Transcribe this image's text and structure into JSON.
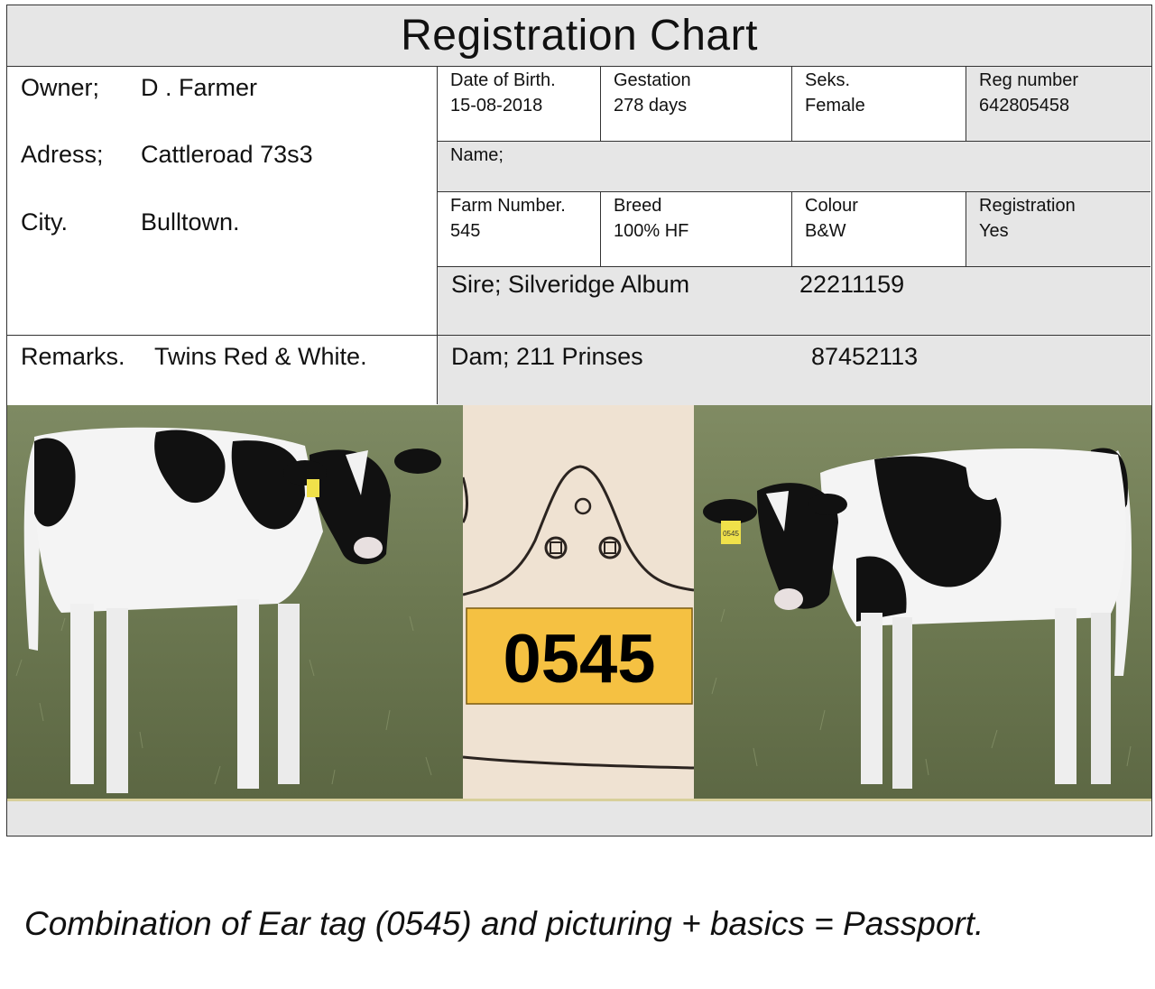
{
  "title": "Registration Chart",
  "owner": {
    "owner_label": "Owner;",
    "owner_value": "D . Farmer",
    "address_label": "Adress;",
    "address_value": "Cattleroad 73s3",
    "city_label": "City.",
    "city_value": "Bulltown."
  },
  "remarks": {
    "label": "Remarks.",
    "value": "Twins Red & White."
  },
  "row1": [
    {
      "label": "Date of Birth.",
      "value": "15-08-2018"
    },
    {
      "label": "Gestation",
      "value": "278 days"
    },
    {
      "label": "Seks.",
      "value": "Female"
    },
    {
      "label": "Reg number",
      "value": "642805458"
    }
  ],
  "name_label": "Name;",
  "row2": [
    {
      "label": "Farm Number.",
      "value": "545"
    },
    {
      "label": "Breed",
      "value": "100% HF"
    },
    {
      "label": "Colour",
      "value": "B&W"
    },
    {
      "label": "Registration",
      "value": "Yes"
    }
  ],
  "sire": {
    "label": "Sire;  Silveridge Album",
    "number": "22211159"
  },
  "dam": {
    "label": "Dam; 211 Prinses",
    "number": "87452113"
  },
  "ear_tag": {
    "number": "0545",
    "small_number": "0545"
  },
  "caption": "Combination of Ear tag (0545) and picturing + basics = Passport.",
  "colors": {
    "header_gray": "#e6e6e6",
    "tag_yellow": "#f5c142",
    "grass": "#6f7a55"
  }
}
